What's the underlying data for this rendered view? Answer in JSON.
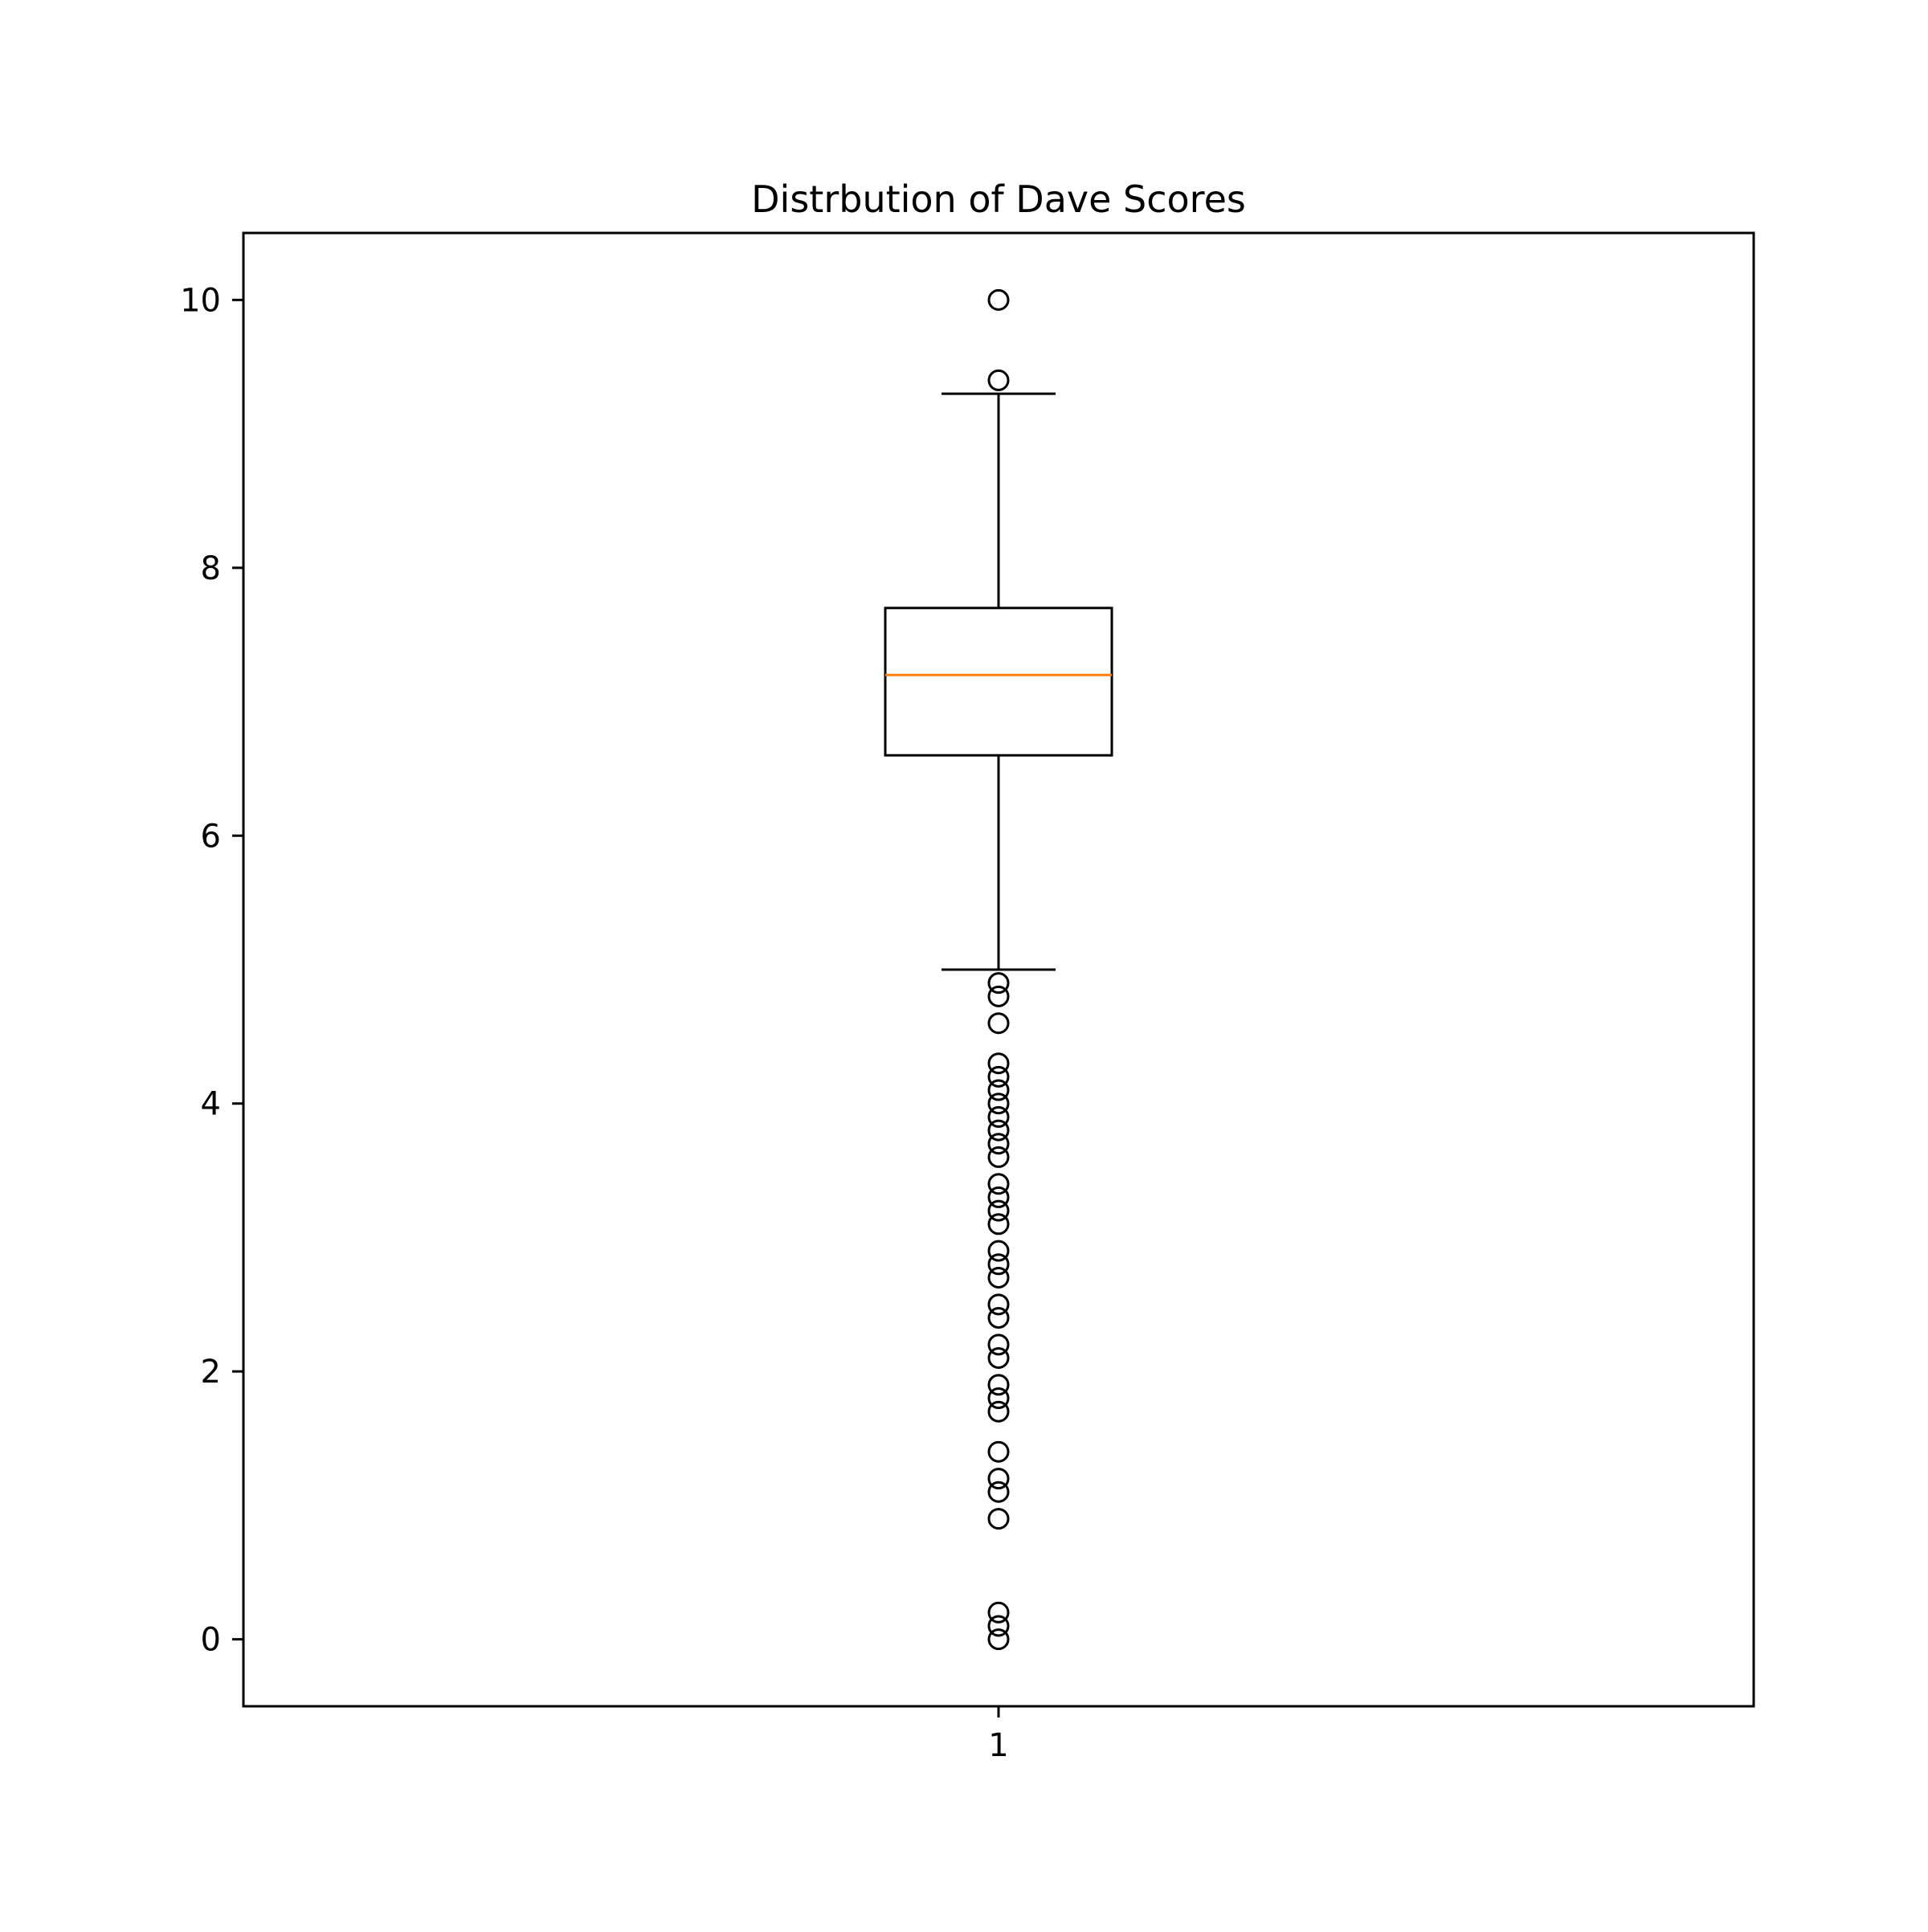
{
  "chart_data": {
    "type": "box",
    "title": "Distrbution of Dave Scores",
    "xlabel": "",
    "ylabel": "",
    "categories": [
      "1"
    ],
    "ylim": [
      -0.5,
      10.5
    ],
    "yticks": [
      0,
      2,
      4,
      6,
      8,
      10
    ],
    "ytick_labels": [
      "0",
      "2",
      "4",
      "6",
      "8",
      "10"
    ],
    "grid": false,
    "legend": "none",
    "boxes": [
      {
        "category": "1",
        "whisker_low": 5.0,
        "q1": 6.6,
        "median": 7.2,
        "q3": 7.7,
        "whisker_high": 9.3,
        "outliers": [
          10.0,
          9.4,
          4.9,
          4.8,
          4.6,
          4.3,
          4.2,
          4.1,
          4.0,
          3.9,
          3.8,
          3.7,
          3.6,
          3.4,
          3.3,
          3.2,
          3.1,
          2.9,
          2.8,
          2.7,
          2.5,
          2.4,
          2.2,
          2.1,
          1.9,
          1.8,
          1.7,
          1.4,
          1.2,
          1.1,
          0.9,
          0.2,
          0.1,
          0.0
        ]
      }
    ],
    "colors": {
      "box": "#000000",
      "median": "#ff7f0e",
      "whisker": "#000000",
      "outlier": "#000000"
    }
  }
}
